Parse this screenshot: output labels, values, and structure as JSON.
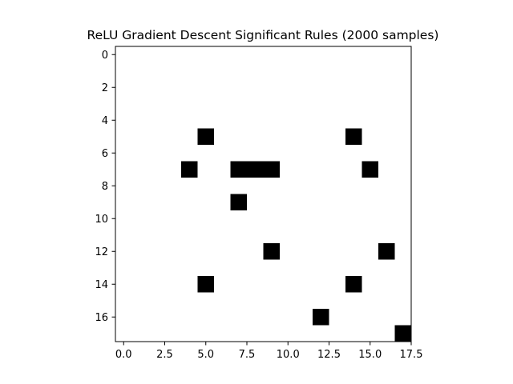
{
  "chart_data": {
    "type": "heatmap",
    "title": "ReLU Gradient Descent Significant Rules (2000 samples)",
    "xlabel": "",
    "ylabel": "",
    "grid": false,
    "colormap": "binary",
    "colors": {
      "on": "#000000",
      "off": "#ffffff",
      "frame": "#000000"
    },
    "rows": 18,
    "cols": 18,
    "xlim": [
      -0.5,
      17.5
    ],
    "ylim": [
      17.5,
      -0.5
    ],
    "xticks": [
      0.0,
      2.5,
      5.0,
      7.5,
      10.0,
      12.5,
      15.0,
      17.5
    ],
    "xtick_labels": [
      "0.0",
      "2.5",
      "5.0",
      "7.5",
      "10.0",
      "12.5",
      "15.0",
      "17.5"
    ],
    "yticks": [
      0,
      2,
      4,
      6,
      8,
      10,
      12,
      14,
      16
    ],
    "ytick_labels": [
      "0",
      "2",
      "4",
      "6",
      "8",
      "10",
      "12",
      "14",
      "16"
    ],
    "active_cells": [
      {
        "row": 5,
        "col": 5
      },
      {
        "row": 5,
        "col": 14
      },
      {
        "row": 7,
        "col": 4
      },
      {
        "row": 7,
        "col": 7
      },
      {
        "row": 7,
        "col": 8
      },
      {
        "row": 7,
        "col": 9
      },
      {
        "row": 7,
        "col": 15
      },
      {
        "row": 9,
        "col": 7
      },
      {
        "row": 12,
        "col": 9
      },
      {
        "row": 12,
        "col": 16
      },
      {
        "row": 14,
        "col": 5
      },
      {
        "row": 14,
        "col": 14
      },
      {
        "row": 16,
        "col": 12
      },
      {
        "row": 17,
        "col": 17
      }
    ]
  }
}
